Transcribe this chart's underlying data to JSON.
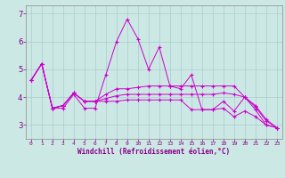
{
  "xlabel": "Windchill (Refroidissement éolien,°C)",
  "xlim": [
    -0.5,
    23.5
  ],
  "ylim": [
    2.5,
    7.3
  ],
  "yticks": [
    3,
    4,
    5,
    6,
    7
  ],
  "xticks": [
    0,
    1,
    2,
    3,
    4,
    5,
    6,
    7,
    8,
    9,
    10,
    11,
    12,
    13,
    14,
    15,
    16,
    17,
    18,
    19,
    20,
    21,
    22,
    23
  ],
  "background_color": "#cce8e4",
  "line_color": "#cc00cc",
  "grid_color": "#aacccc",
  "lines": [
    [
      4.6,
      5.2,
      3.6,
      3.6,
      4.1,
      3.6,
      3.6,
      4.8,
      6.0,
      6.8,
      6.1,
      5.0,
      5.8,
      4.4,
      4.3,
      4.8,
      3.55,
      3.55,
      3.85,
      3.5,
      4.0,
      3.55,
      3.0,
      2.9
    ],
    [
      4.6,
      5.2,
      3.6,
      3.7,
      4.15,
      3.85,
      3.85,
      4.1,
      4.3,
      4.3,
      4.35,
      4.4,
      4.4,
      4.4,
      4.4,
      4.4,
      4.4,
      4.4,
      4.4,
      4.4,
      4.0,
      3.7,
      3.2,
      2.9
    ],
    [
      4.6,
      5.2,
      3.6,
      3.7,
      4.15,
      3.85,
      3.85,
      3.85,
      3.85,
      3.9,
      3.9,
      3.9,
      3.9,
      3.9,
      3.9,
      3.55,
      3.55,
      3.55,
      3.6,
      3.3,
      3.5,
      3.3,
      3.0,
      2.9
    ],
    [
      4.6,
      5.2,
      3.6,
      3.7,
      4.15,
      3.85,
      3.85,
      3.95,
      4.05,
      4.1,
      4.1,
      4.1,
      4.1,
      4.1,
      4.1,
      4.1,
      4.1,
      4.1,
      4.15,
      4.1,
      4.0,
      3.65,
      3.15,
      2.9
    ]
  ]
}
